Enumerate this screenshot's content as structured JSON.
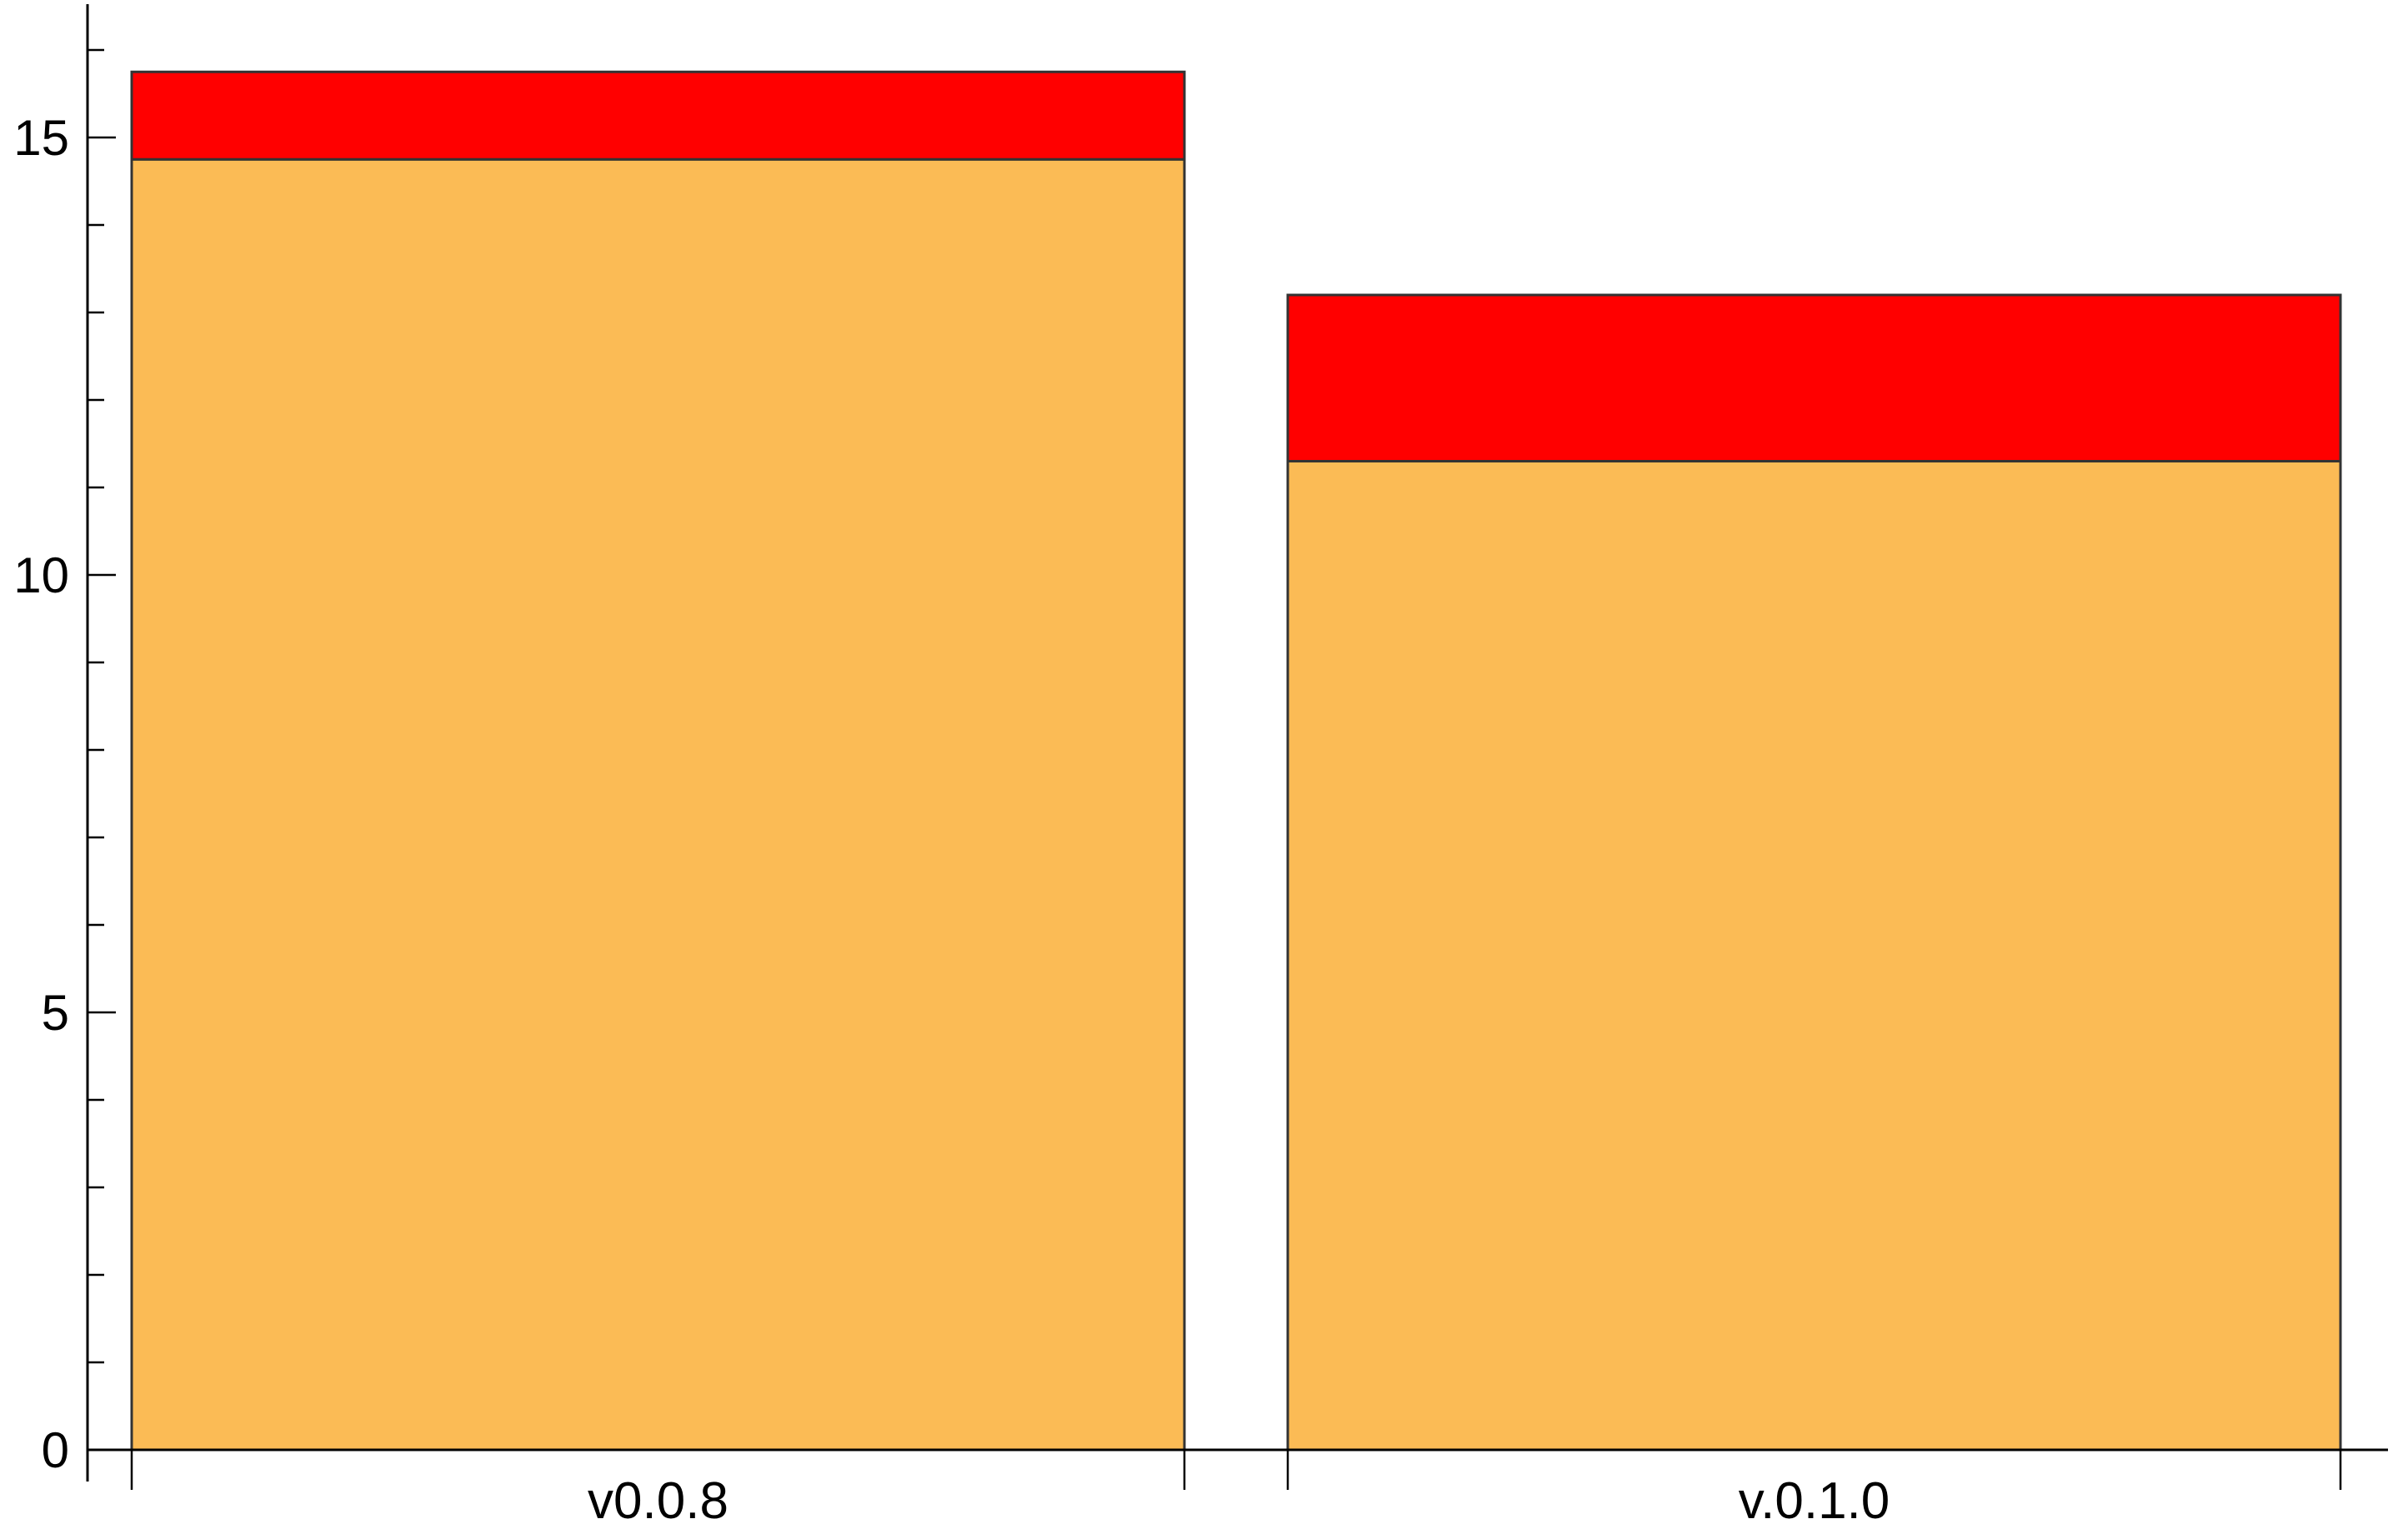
{
  "chart_data": {
    "type": "bar",
    "stacked": true,
    "categories": [
      "v0.0.8",
      "v.0.1.0"
    ],
    "series": [
      {
        "values": [
          14.75,
          11.3
        ],
        "color": "#FBBB55"
      },
      {
        "values": [
          1.0,
          1.9
        ],
        "color": "#FF0000"
      }
    ],
    "title": "",
    "xlabel": "",
    "ylabel": "",
    "ylim": [
      0,
      16.5
    ],
    "y_major_ticks": [
      0,
      5,
      10,
      15
    ],
    "y_minor_step": 1,
    "grid": false,
    "legend": "none"
  }
}
